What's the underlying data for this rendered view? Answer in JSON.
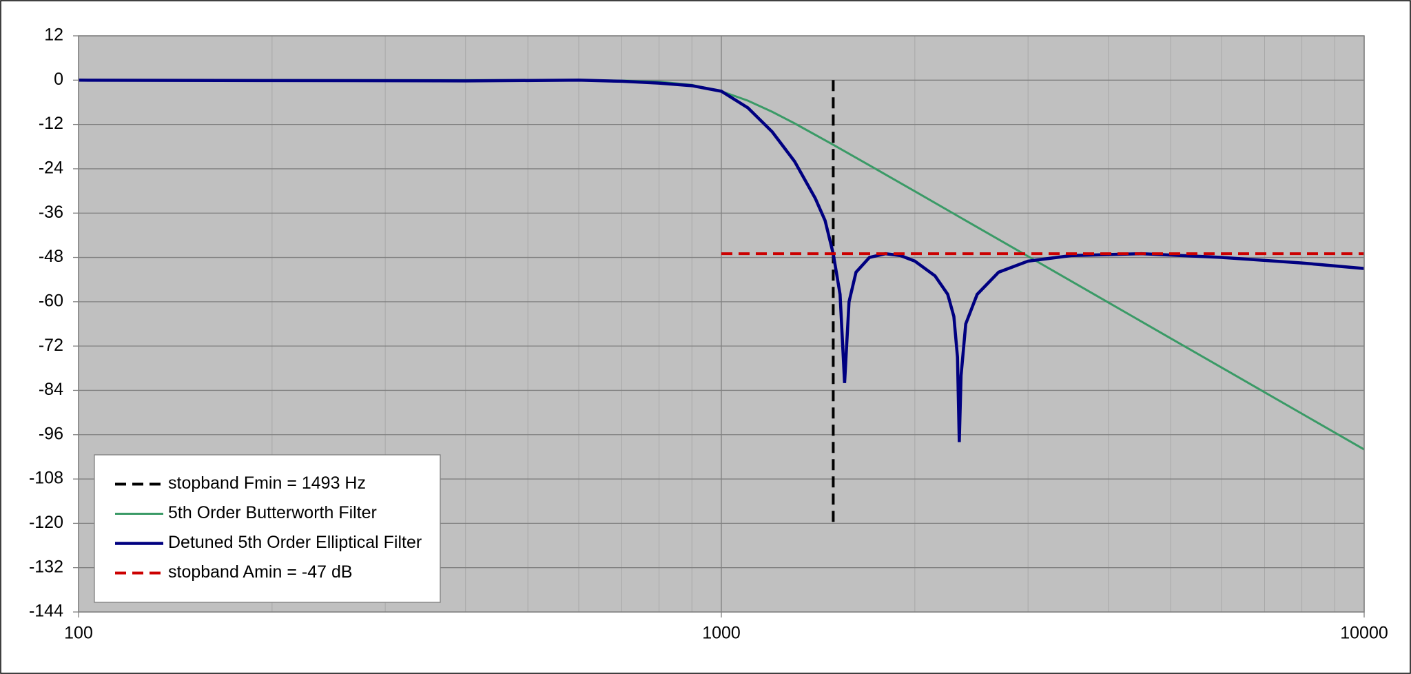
{
  "chart_data": {
    "type": "line",
    "xscale": "log",
    "xlim": [
      100,
      10000
    ],
    "xticks": [
      100,
      1000,
      10000
    ],
    "xminorticks": [
      200,
      300,
      400,
      500,
      600,
      700,
      800,
      900,
      2000,
      3000,
      4000,
      5000,
      6000,
      7000,
      8000,
      9000
    ],
    "ylim": [
      -144,
      12
    ],
    "yticks": [
      12,
      0,
      -12,
      -24,
      -36,
      -48,
      -60,
      -72,
      -84,
      -96,
      -108,
      -120,
      -132,
      -144
    ],
    "grid": true,
    "legend": "lower left",
    "series": [
      {
        "name": "stopband Fmin = 1493 Hz",
        "color": "#000000",
        "dashed": true,
        "x": [
          1493,
          1493
        ],
        "values": [
          0,
          -120
        ]
      },
      {
        "name": "5th Order Butterworth Filter",
        "color": "#3a9a66",
        "dashed": false,
        "x": [
          100,
          200,
          500,
          700,
          800,
          900,
          1000,
          1100,
          1200,
          1300,
          1493,
          1700,
          2000,
          2500,
          3000,
          4000,
          5000,
          7000,
          10000
        ],
        "values": [
          0,
          0,
          0,
          -0.12,
          -0.44,
          -1.3,
          -3.01,
          -5.56,
          -8.57,
          -11.7,
          -17.5,
          -23.07,
          -30.1,
          -39.8,
          -47.7,
          -60.2,
          -69.9,
          -84.5,
          -100
        ]
      },
      {
        "name": "Detuned 5th Order Elliptical Filter",
        "color": "#000080",
        "dashed": false,
        "x": [
          100,
          200,
          400,
          600,
          700,
          800,
          900,
          1000,
          1100,
          1200,
          1300,
          1400,
          1450,
          1493,
          1530,
          1555,
          1580,
          1620,
          1700,
          1800,
          1900,
          2000,
          2150,
          2250,
          2300,
          2330,
          2345,
          2360,
          2400,
          2500,
          2700,
          3000,
          3500,
          4500,
          6000,
          8000,
          10000
        ],
        "values": [
          0,
          -0.1,
          -0.2,
          0,
          -0.3,
          -0.8,
          -1.5,
          -3,
          -7.5,
          -14,
          -22,
          -32,
          -38,
          -47,
          -58,
          -82,
          -60,
          -52,
          -48,
          -47,
          -47.5,
          -49,
          -53,
          -58,
          -64,
          -75,
          -98,
          -80,
          -66,
          -58,
          -52,
          -49,
          -47.5,
          -47,
          -48,
          -49.5,
          -51
        ]
      },
      {
        "name": "stopband Amin = -47 dB",
        "color": "#cc0000",
        "dashed": true,
        "x": [
          1000,
          10000
        ],
        "values": [
          -47,
          -47
        ]
      }
    ]
  }
}
